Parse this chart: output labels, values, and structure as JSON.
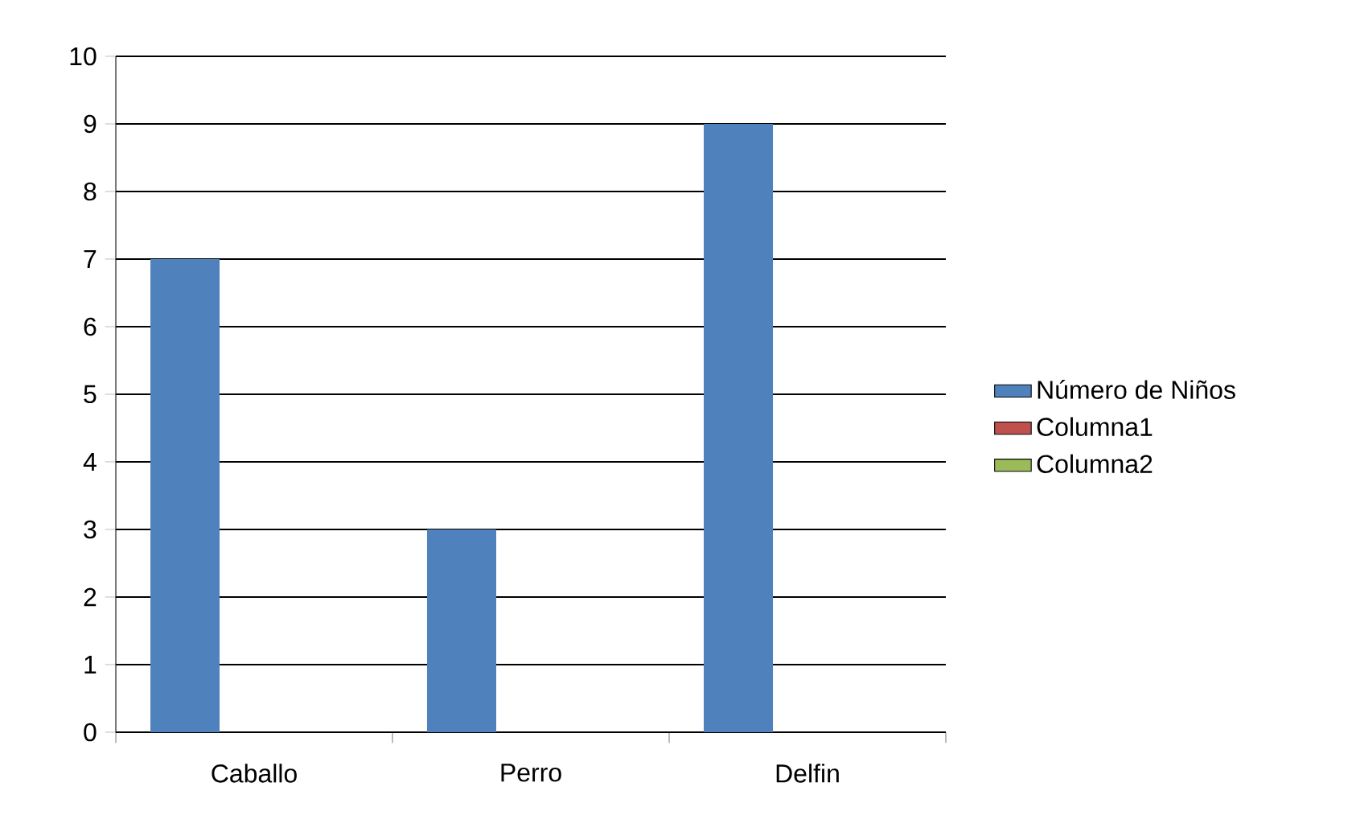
{
  "chart_data": {
    "type": "bar",
    "categories": [
      "Caballo",
      "Perro",
      "Delfin"
    ],
    "series": [
      {
        "name": "Número de Niños",
        "color": "#4f81bd",
        "values": [
          7,
          3,
          9
        ]
      },
      {
        "name": "Columna1",
        "color": "#c0504d",
        "values": [
          null,
          null,
          null
        ]
      },
      {
        "name": "Columna2",
        "color": "#9bbb59",
        "values": [
          null,
          null,
          null
        ]
      }
    ],
    "ylim": [
      0,
      10
    ],
    "yticks": [
      0,
      1,
      2,
      3,
      4,
      5,
      6,
      7,
      8,
      9,
      10
    ],
    "grid": "y",
    "legend": "right"
  }
}
